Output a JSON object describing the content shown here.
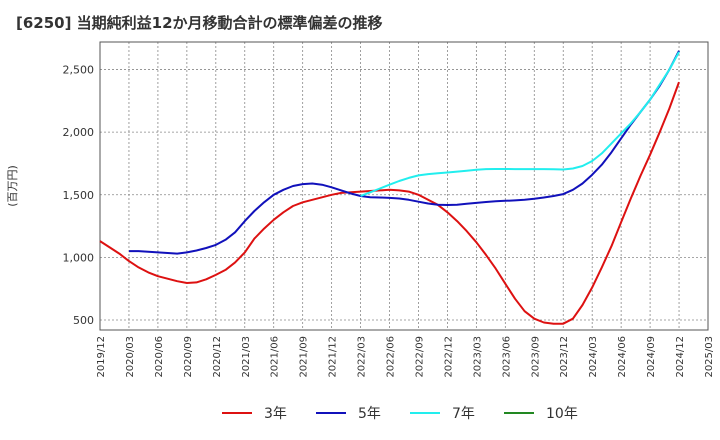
{
  "chart_data": {
    "type": "line",
    "title": "[6250]  当期純利益12か月移動合計の標準偏差の推移",
    "ylabel": "(百万円)",
    "xlabel": "",
    "ylim": [
      420,
      2720
    ],
    "yticks": [
      500,
      1000,
      1500,
      2000,
      2500
    ],
    "ytick_labels": [
      "500",
      "1,000",
      "1,500",
      "2,000",
      "2,500"
    ],
    "x_categories": [
      "2019/12",
      "2020/03",
      "2020/06",
      "2020/09",
      "2020/12",
      "2021/03",
      "2021/06",
      "2021/09",
      "2021/12",
      "2022/03",
      "2022/06",
      "2022/09",
      "2022/12",
      "2023/03",
      "2023/06",
      "2023/09",
      "2023/12",
      "2024/03",
      "2024/06",
      "2024/09",
      "2024/12",
      "2025/03"
    ],
    "grid": true,
    "legend_position": "bottom",
    "series": [
      {
        "name": "3年",
        "color": "#dd1111",
        "x": [
          "2019/12",
          "2020/01",
          "2020/02",
          "2020/03",
          "2020/04",
          "2020/05",
          "2020/06",
          "2020/07",
          "2020/08",
          "2020/09",
          "2020/10",
          "2020/11",
          "2020/12",
          "2021/01",
          "2021/02",
          "2021/03",
          "2021/04",
          "2021/05",
          "2021/06",
          "2021/07",
          "2021/08",
          "2021/09",
          "2021/10",
          "2021/11",
          "2021/12",
          "2022/01",
          "2022/02",
          "2022/03",
          "2022/04",
          "2022/05",
          "2022/06",
          "2022/07",
          "2022/08",
          "2022/09",
          "2022/10",
          "2022/11",
          "2022/12",
          "2023/01",
          "2023/02",
          "2023/03",
          "2023/04",
          "2023/05",
          "2023/06",
          "2023/07",
          "2023/08",
          "2023/09",
          "2023/10",
          "2023/11",
          "2023/12",
          "2024/01",
          "2024/02",
          "2024/03",
          "2024/04",
          "2024/05",
          "2024/06",
          "2024/07",
          "2024/08",
          "2024/09",
          "2024/10",
          "2024/11",
          "2024/12"
        ],
        "values": [
          1130,
          1080,
          1030,
          970,
          920,
          880,
          850,
          830,
          810,
          795,
          800,
          825,
          860,
          900,
          960,
          1040,
          1150,
          1230,
          1300,
          1360,
          1410,
          1440,
          1460,
          1480,
          1500,
          1515,
          1520,
          1525,
          1530,
          1535,
          1540,
          1535,
          1525,
          1500,
          1460,
          1420,
          1360,
          1290,
          1210,
          1120,
          1020,
          910,
          790,
          670,
          570,
          510,
          480,
          470,
          470,
          510,
          620,
          760,
          920,
          1090,
          1280,
          1470,
          1650,
          1820,
          2000,
          2190,
          2400
        ]
      },
      {
        "name": "5年",
        "color": "#1111bb",
        "x": [
          "2020/03",
          "2020/04",
          "2020/05",
          "2020/06",
          "2020/07",
          "2020/08",
          "2020/09",
          "2020/10",
          "2020/11",
          "2020/12",
          "2021/01",
          "2021/02",
          "2021/03",
          "2021/04",
          "2021/05",
          "2021/06",
          "2021/07",
          "2021/08",
          "2021/09",
          "2021/10",
          "2021/11",
          "2021/12",
          "2022/01",
          "2022/02",
          "2022/03",
          "2022/04",
          "2022/05",
          "2022/06",
          "2022/07",
          "2022/08",
          "2022/09",
          "2022/10",
          "2022/11",
          "2022/12",
          "2023/01",
          "2023/02",
          "2023/03",
          "2023/04",
          "2023/05",
          "2023/06",
          "2023/07",
          "2023/08",
          "2023/09",
          "2023/10",
          "2023/11",
          "2023/12",
          "2024/01",
          "2024/02",
          "2024/03",
          "2024/04",
          "2024/05",
          "2024/06",
          "2024/07",
          "2024/08",
          "2024/09",
          "2024/10",
          "2024/11",
          "2024/12"
        ],
        "values": [
          1050,
          1050,
          1045,
          1040,
          1035,
          1030,
          1040,
          1055,
          1075,
          1100,
          1140,
          1200,
          1290,
          1370,
          1440,
          1500,
          1540,
          1570,
          1585,
          1590,
          1580,
          1560,
          1535,
          1510,
          1490,
          1480,
          1478,
          1475,
          1470,
          1460,
          1445,
          1430,
          1420,
          1418,
          1420,
          1428,
          1435,
          1442,
          1448,
          1452,
          1455,
          1460,
          1468,
          1478,
          1490,
          1505,
          1540,
          1590,
          1660,
          1740,
          1840,
          1950,
          2060,
          2160,
          2260,
          2370,
          2500,
          2650
        ]
      },
      {
        "name": "7年",
        "color": "#22eeee",
        "x": [
          "2022/03",
          "2022/04",
          "2022/05",
          "2022/06",
          "2022/07",
          "2022/08",
          "2022/09",
          "2022/10",
          "2022/11",
          "2022/12",
          "2023/01",
          "2023/02",
          "2023/03",
          "2023/04",
          "2023/05",
          "2023/06",
          "2023/07",
          "2023/08",
          "2023/09",
          "2023/10",
          "2023/11",
          "2023/12",
          "2024/01",
          "2024/02",
          "2024/03",
          "2024/04",
          "2024/05",
          "2024/06",
          "2024/07",
          "2024/08",
          "2024/09",
          "2024/10",
          "2024/11",
          "2024/12"
        ],
        "values": [
          1490,
          1520,
          1550,
          1580,
          1610,
          1635,
          1655,
          1665,
          1672,
          1678,
          1685,
          1692,
          1700,
          1705,
          1706,
          1706,
          1705,
          1705,
          1705,
          1705,
          1703,
          1702,
          1710,
          1730,
          1770,
          1830,
          1910,
          1990,
          2070,
          2160,
          2260,
          2380,
          2500,
          2640
        ]
      },
      {
        "name": "10年",
        "color": "#228822",
        "x": [],
        "values": []
      }
    ]
  }
}
